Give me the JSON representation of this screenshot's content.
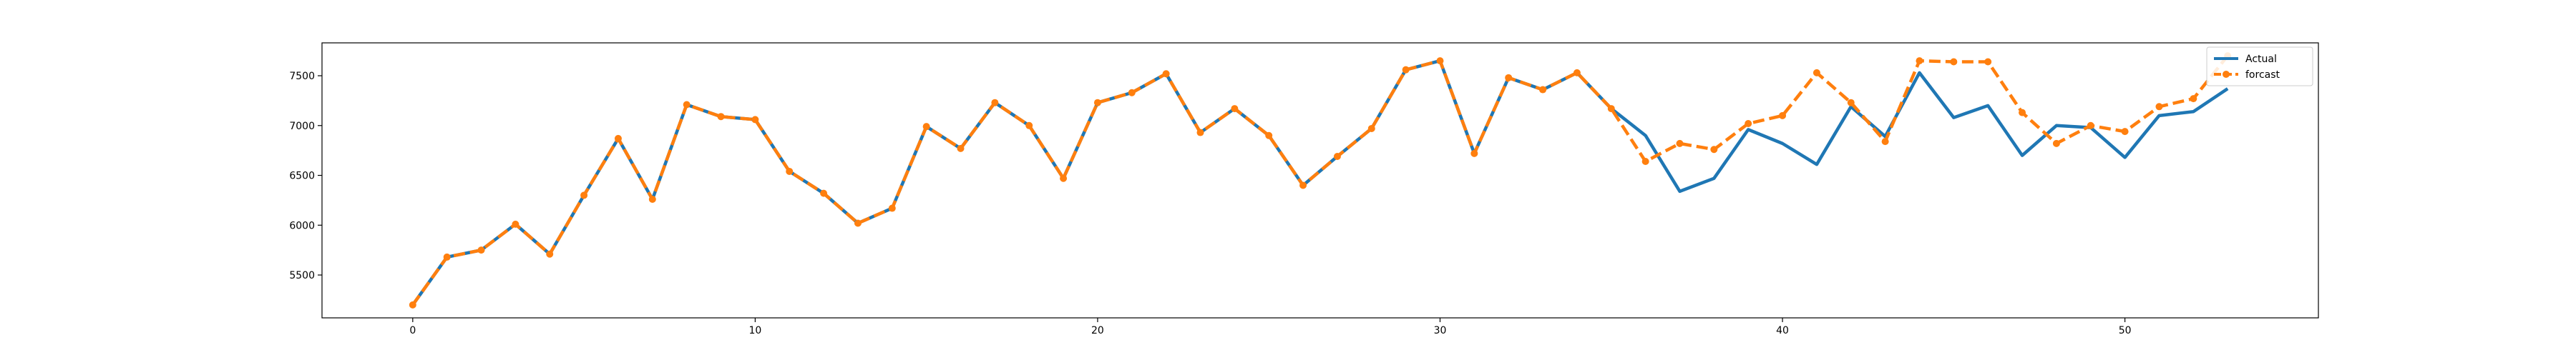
{
  "chart_data": {
    "type": "line",
    "title": "",
    "xlabel": "",
    "ylabel": "",
    "xlim": [
      -2.65,
      55.65
    ],
    "ylim": [
      5070,
      7830
    ],
    "xticks": [
      0,
      10,
      20,
      30,
      40,
      50
    ],
    "yticks": [
      5500,
      6000,
      6500,
      7000,
      7500
    ],
    "grid": false,
    "legend_position": "top-right",
    "series": [
      {
        "name": "Actual",
        "color": "#1f77b4",
        "style": "solid",
        "marker": "none",
        "x": [
          0,
          1,
          2,
          3,
          4,
          5,
          6,
          7,
          8,
          9,
          10,
          11,
          12,
          13,
          14,
          15,
          16,
          17,
          18,
          19,
          20,
          21,
          22,
          23,
          24,
          25,
          26,
          27,
          28,
          29,
          30,
          31,
          32,
          33,
          34,
          35,
          36,
          37,
          38,
          39,
          40,
          41,
          42,
          43,
          44,
          45,
          46,
          47,
          48,
          49,
          50,
          51,
          52,
          53
        ],
        "values": [
          5200,
          5680,
          5750,
          6010,
          5710,
          6300,
          6870,
          6260,
          7210,
          7090,
          7060,
          6540,
          6320,
          6020,
          6170,
          6990,
          6770,
          7230,
          7000,
          6470,
          7230,
          7330,
          7520,
          6930,
          7170,
          6900,
          6400,
          6690,
          6970,
          7560,
          7650,
          6720,
          7480,
          7360,
          7530,
          7170,
          6900,
          6340,
          6470,
          6960,
          6820,
          6610,
          7190,
          6890,
          7530,
          7080,
          7200,
          6700,
          7000,
          6980,
          6680,
          7100,
          7140,
          7370
        ]
      },
      {
        "name": "forcast",
        "color": "#ff7f0e",
        "style": "dashed",
        "marker": "circle",
        "x": [
          0,
          1,
          2,
          3,
          4,
          5,
          6,
          7,
          8,
          9,
          10,
          11,
          12,
          13,
          14,
          15,
          16,
          17,
          18,
          19,
          20,
          21,
          22,
          23,
          24,
          25,
          26,
          27,
          28,
          29,
          30,
          31,
          32,
          33,
          34,
          35,
          36,
          37,
          38,
          39,
          40,
          41,
          42,
          43,
          44,
          45,
          46,
          47,
          48,
          49,
          50,
          51,
          52,
          53
        ],
        "values": [
          5200,
          5680,
          5750,
          6010,
          5710,
          6300,
          6870,
          6260,
          7210,
          7090,
          7060,
          6540,
          6320,
          6020,
          6170,
          6990,
          6770,
          7230,
          7000,
          6470,
          7230,
          7330,
          7520,
          6930,
          7170,
          6900,
          6400,
          6690,
          6970,
          7560,
          7650,
          6720,
          7480,
          7360,
          7530,
          7170,
          6640,
          6820,
          6760,
          7020,
          7100,
          7530,
          7230,
          6840,
          7650,
          7640,
          7640,
          7130,
          6820,
          7000,
          6940,
          7190,
          7270,
          7700
        ]
      }
    ]
  }
}
